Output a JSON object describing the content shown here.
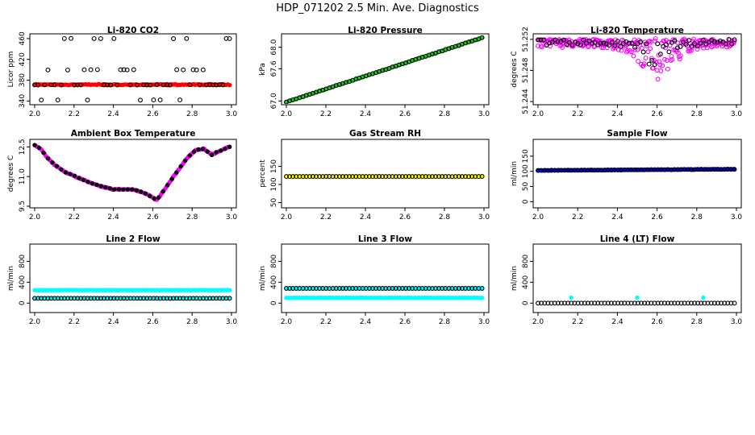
{
  "title": "HDP_071202  2.5 Min. Ave. Diagnostics",
  "colors": {
    "red": "#ff0000",
    "green": "#1ec81e",
    "magenta": "#ff00ff",
    "yellow": "#ffff00",
    "blue": "#0000cc",
    "cyan": "#00ffff",
    "black": "#000000"
  },
  "chart_data": [
    {
      "id": "co2",
      "type": "scatter",
      "title": "Li-820 CO2",
      "ylabel": "Licor ppm",
      "xlim": [
        2.0,
        3.0
      ],
      "ylim": [
        336,
        466
      ],
      "xticks": [
        "2.0",
        "2.2",
        "2.4",
        "2.6",
        "2.8",
        "3.0"
      ],
      "yticks": [
        340,
        380,
        420,
        460
      ],
      "ytick_labels": [
        "340",
        "380",
        "420",
        "460"
      ],
      "series": [
        {
          "name": "colored",
          "color": "red",
          "filled": true,
          "n": 120,
          "gen": "flat",
          "base": 371.5,
          "noise": 1.5
        },
        {
          "name": "black",
          "color": "black",
          "filled": false,
          "n": 60,
          "gen": "levels",
          "levels": [
            342,
            371,
            371,
            371,
            400,
            460
          ],
          "noise": 0.5
        }
      ]
    },
    {
      "id": "pressure",
      "type": "scatter",
      "title": "Li-820 Pressure",
      "ylabel": "kPa",
      "xlim": [
        2.0,
        3.0
      ],
      "ylim": [
        66.96,
        68.22
      ],
      "xticks": [
        "2.0",
        "2.2",
        "2.4",
        "2.6",
        "2.8",
        "3.0"
      ],
      "yticks": [
        67.0,
        67.6,
        68.0
      ],
      "ytick_labels": [
        "67.0",
        "67.6",
        "68.0"
      ],
      "series": [
        {
          "name": "colored",
          "color": "green",
          "filled": true,
          "n": 120,
          "gen": "linear",
          "a": 66.98,
          "b": 1.21,
          "noise": 0.008
        },
        {
          "name": "black",
          "color": "black",
          "filled": false,
          "n": 60,
          "gen": "linear",
          "a": 66.98,
          "b": 1.21,
          "noise": 0.006
        }
      ]
    },
    {
      "id": "temperature",
      "type": "scatter",
      "title": "Li-820 Temperature",
      "ylabel": "degrees C",
      "xlim": [
        2.0,
        3.0
      ],
      "ylim": [
        51.2438,
        51.2525
      ],
      "xticks": [
        "2.0",
        "2.2",
        "2.4",
        "2.6",
        "2.8",
        "3.0"
      ],
      "yticks": [
        51.244,
        51.248,
        51.252
      ],
      "ytick_labels": [
        "51.244",
        "51.248",
        "51.252"
      ],
      "series": [
        {
          "name": "colored",
          "color": "magenta",
          "filled": false,
          "n": 260,
          "gen": "dip",
          "base": 51.252,
          "depth": 0.0035,
          "center": 2.6,
          "width": 0.13,
          "noise": 0.0012
        },
        {
          "name": "black",
          "color": "black",
          "filled": false,
          "n": 70,
          "gen": "dip",
          "base": 51.252,
          "depth": 0.0025,
          "center": 2.6,
          "width": 0.12,
          "noise": 0.0008
        }
      ]
    },
    {
      "id": "ambient",
      "type": "scatter",
      "title": "Ambient Box Temperature",
      "ylabel": "degrees C",
      "xlim": [
        2.0,
        3.0
      ],
      "ylim": [
        9.5,
        12.8
      ],
      "xticks": [
        "2.0",
        "2.2",
        "2.4",
        "2.6",
        "2.8",
        "3.0"
      ],
      "yticks": [
        9.5,
        11.0,
        12.5
      ],
      "ytick_labels": [
        "9.5",
        "11.0",
        "12.5"
      ],
      "series": [
        {
          "name": "colored",
          "color": "magenta",
          "filled": true,
          "n": 200,
          "gen": "curve",
          "kx": [
            2.0,
            2.03,
            2.06,
            2.1,
            2.16,
            2.22,
            2.28,
            2.34,
            2.4,
            2.5,
            2.55,
            2.6,
            2.62,
            2.66,
            2.72,
            2.78,
            2.82,
            2.86,
            2.9,
            2.94,
            2.99
          ],
          "ky": [
            12.6,
            12.4,
            12.0,
            11.6,
            11.2,
            10.95,
            10.7,
            10.5,
            10.35,
            10.35,
            10.2,
            9.95,
            9.8,
            10.35,
            11.2,
            12.0,
            12.35,
            12.4,
            12.1,
            12.3,
            12.5
          ],
          "noise": 0.04
        },
        {
          "name": "black",
          "color": "black",
          "filled": true,
          "n": 45,
          "gen": "curve",
          "kx": [
            2.0,
            2.03,
            2.06,
            2.1,
            2.16,
            2.22,
            2.28,
            2.34,
            2.4,
            2.5,
            2.55,
            2.6,
            2.62,
            2.66,
            2.72,
            2.78,
            2.82,
            2.86,
            2.9,
            2.94,
            2.99
          ],
          "ky": [
            12.6,
            12.4,
            12.0,
            11.6,
            11.2,
            10.95,
            10.7,
            10.5,
            10.35,
            10.35,
            10.2,
            9.95,
            9.8,
            10.35,
            11.2,
            12.0,
            12.35,
            12.4,
            12.1,
            12.3,
            12.5
          ],
          "noise": 0.02
        }
      ]
    },
    {
      "id": "rh",
      "type": "scatter",
      "title": "Gas Stream RH",
      "ylabel": "percent",
      "xlim": [
        2.0,
        3.0
      ],
      "ylim": [
        40,
        220
      ],
      "xticks": [
        "2.0",
        "2.2",
        "2.4",
        "2.6",
        "2.8",
        "3.0"
      ],
      "yticks": [
        50,
        100,
        150
      ],
      "ytick_labels": [
        "50",
        "100",
        "150"
      ],
      "series": [
        {
          "name": "colored",
          "color": "yellow",
          "filled": true,
          "n": 120,
          "gen": "flat",
          "base": 122,
          "noise": 0.3
        },
        {
          "name": "black",
          "color": "black",
          "filled": false,
          "n": 60,
          "gen": "flat",
          "base": 122,
          "noise": 0.2
        }
      ]
    },
    {
      "id": "sample",
      "type": "scatter",
      "title": "Sample Flow",
      "ylabel": "ml/min",
      "xlim": [
        2.0,
        3.0
      ],
      "ylim": [
        -15,
        200
      ],
      "xticks": [
        "2.0",
        "2.2",
        "2.4",
        "2.6",
        "2.8",
        "3.0"
      ],
      "yticks": [
        0,
        50,
        100,
        150
      ],
      "ytick_labels": [
        "0",
        "50",
        "100",
        "150"
      ],
      "series": [
        {
          "name": "colored",
          "color": "blue",
          "filled": true,
          "n": 160,
          "gen": "linear",
          "a": 103,
          "b": 4,
          "noise": 1.2
        },
        {
          "name": "black",
          "color": "black",
          "filled": false,
          "n": 60,
          "gen": "linear",
          "a": 103,
          "b": 4,
          "noise": 0.8
        }
      ]
    },
    {
      "id": "line2",
      "type": "scatter",
      "title": "Line 2 Flow",
      "ylabel": "ml/min",
      "xlim": [
        2.0,
        3.0
      ],
      "ylim": [
        -150,
        1100
      ],
      "xticks": [
        "2.0",
        "2.2",
        "2.4",
        "2.6",
        "2.8",
        "3.0"
      ],
      "yticks": [
        0,
        400,
        800
      ],
      "ytick_labels": [
        "0",
        "400",
        "800"
      ],
      "series": [
        {
          "name": "cyan-upper",
          "color": "cyan",
          "filled": true,
          "n": 120,
          "gen": "flat",
          "base": 248,
          "noise": 3
        },
        {
          "name": "cyan-lower",
          "color": "cyan",
          "filled": true,
          "n": 120,
          "gen": "flat",
          "base": 92,
          "noise": 2
        },
        {
          "name": "black",
          "color": "black",
          "filled": false,
          "n": 60,
          "gen": "flat",
          "base": 92,
          "noise": 1
        }
      ]
    },
    {
      "id": "line3",
      "type": "scatter",
      "title": "Line 3 Flow",
      "ylabel": "ml/min",
      "xlim": [
        2.0,
        3.0
      ],
      "ylim": [
        -150,
        1100
      ],
      "xticks": [
        "2.0",
        "2.2",
        "2.4",
        "2.6",
        "2.8",
        "3.0"
      ],
      "yticks": [
        0,
        400,
        800
      ],
      "ytick_labels": [
        "0",
        "400",
        "800"
      ],
      "series": [
        {
          "name": "cyan-lower",
          "color": "cyan",
          "filled": true,
          "n": 120,
          "gen": "flat",
          "base": 100,
          "noise": 2
        },
        {
          "name": "cyan-upper",
          "color": "cyan",
          "filled": true,
          "n": 60,
          "gen": "flat",
          "base": 282,
          "noise": 2
        },
        {
          "name": "black",
          "color": "black",
          "filled": false,
          "n": 60,
          "gen": "flat",
          "base": 282,
          "noise": 1
        }
      ]
    },
    {
      "id": "line4",
      "type": "scatter",
      "title": "Line 4 (LT) Flow",
      "ylabel": "ml/min",
      "xlim": [
        2.0,
        3.0
      ],
      "ylim": [
        -150,
        1100
      ],
      "xticks": [
        "2.0",
        "2.2",
        "2.4",
        "2.6",
        "2.8",
        "3.0"
      ],
      "yticks": [
        0,
        400,
        800
      ],
      "ytick_labels": [
        "0",
        "400",
        "800"
      ],
      "series": [
        {
          "name": "cyan",
          "color": "cyan",
          "filled": true,
          "n": 3,
          "gen": "points",
          "px": [
            2.167,
            2.5,
            2.833
          ],
          "py": [
            105,
            105,
            105
          ]
        },
        {
          "name": "black",
          "color": "black",
          "filled": false,
          "n": 60,
          "gen": "flat",
          "base": 0,
          "noise": 0.5
        }
      ]
    }
  ]
}
